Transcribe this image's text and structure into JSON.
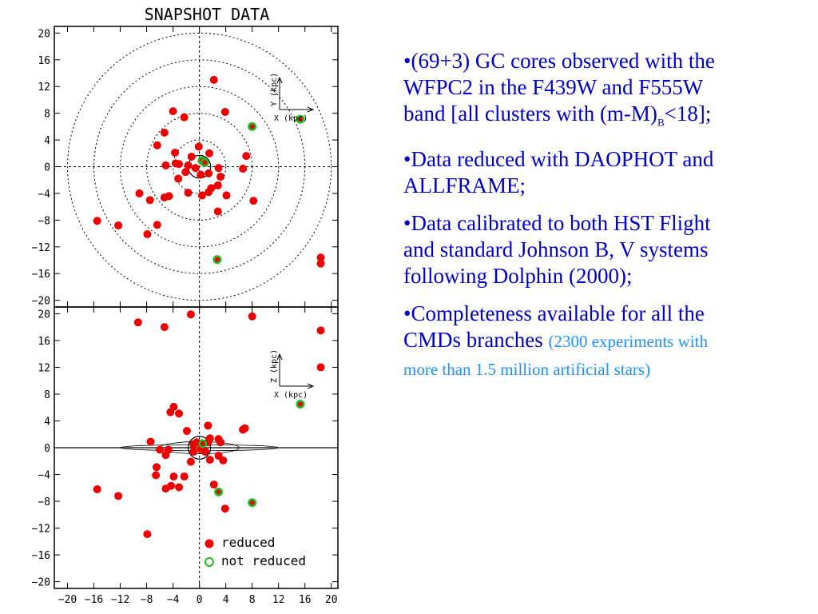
{
  "chart_data": {
    "type": "scatter",
    "title": "SNAPSHOT DATA",
    "ticks": [
      -20,
      -16,
      -12,
      -8,
      -4,
      0,
      4,
      8,
      12,
      16,
      20
    ],
    "xlim": [
      -22,
      21
    ],
    "ylim": [
      -21,
      21
    ],
    "grid": false,
    "legend_position": "bottom-right",
    "colors": {
      "reduced": "#ee0000",
      "not_reduced": "#22bb22"
    },
    "panels": [
      {
        "name": "top",
        "xlabel": "X (kpc)",
        "ylabel": "Y (kpc)",
        "rings": [
          4,
          8,
          12,
          16,
          20
        ],
        "series": [
          {
            "name": "reduced",
            "points": [
              [
                2.2,
                13
              ],
              [
                -4,
                8.3
              ],
              [
                3.9,
                8.2
              ],
              [
                -2.3,
                7.4
              ],
              [
                -5.3,
                5.1
              ],
              [
                -6.4,
                3.2
              ],
              [
                -3.7,
                2.1
              ],
              [
                -0.1,
                3
              ],
              [
                -1.2,
                1.5
              ],
              [
                1.5,
                2
              ],
              [
                7.1,
                1.6
              ],
              [
                -3.6,
                0.5
              ],
              [
                -3.1,
                0.4
              ],
              [
                -1.7,
                0.2
              ],
              [
                -5.1,
                0.2
              ],
              [
                -0.6,
                -0.2
              ],
              [
                2.9,
                -0.2
              ],
              [
                6.6,
                -0.3
              ],
              [
                -2.1,
                -0.8
              ],
              [
                1.4,
                -1
              ],
              [
                3.2,
                -1.5
              ],
              [
                0.2,
                -1.2
              ],
              [
                -3.2,
                -1.8
              ],
              [
                2.8,
                -2.8
              ],
              [
                1.8,
                -3.2
              ],
              [
                -1.7,
                -3.9
              ],
              [
                1.4,
                -3.8
              ],
              [
                -9.1,
                -4
              ],
              [
                -4.6,
                -4.4
              ],
              [
                -5.3,
                -4.6
              ],
              [
                4.1,
                -4.3
              ],
              [
                0.4,
                -4.3
              ],
              [
                -7.5,
                -5
              ],
              [
                8.2,
                -5.1
              ],
              [
                2.8,
                -6.7
              ],
              [
                -15.5,
                -8.1
              ],
              [
                -12.3,
                -8.8
              ],
              [
                -6.4,
                -8.7
              ],
              [
                -7.9,
                -10.1
              ],
              [
                18.4,
                -13.6
              ],
              [
                18.4,
                -14.5
              ]
            ]
          },
          {
            "name": "not reduced",
            "points": [
              [
                0.4,
                0.9
              ],
              [
                0.8,
                0.6
              ],
              [
                8,
                6
              ],
              [
                15.3,
                7.1
              ],
              [
                2.7,
                -13.9
              ]
            ]
          }
        ]
      },
      {
        "name": "bottom",
        "xlabel": "X (kpc)",
        "ylabel": "Z (kpc)",
        "series": [
          {
            "name": "reduced",
            "points": [
              [
                -1.3,
                19.9
              ],
              [
                8,
                19.6
              ],
              [
                -9.3,
                18.7
              ],
              [
                -5.3,
                18
              ],
              [
                18.4,
                17.5
              ],
              [
                18.4,
                12
              ],
              [
                -3.9,
                6.1
              ],
              [
                -4.4,
                5.3
              ],
              [
                -3.1,
                5.1
              ],
              [
                -1.9,
                2.5
              ],
              [
                1.3,
                3.3
              ],
              [
                6.6,
                2.7
              ],
              [
                6.9,
                2.9
              ],
              [
                -7.4,
                0.9
              ],
              [
                -4.7,
                -0.3
              ],
              [
                -6,
                -0.3
              ],
              [
                -0.9,
                0.5
              ],
              [
                -0.4,
                0.8
              ],
              [
                1.3,
                0.8
              ],
              [
                1.6,
                1.4
              ],
              [
                2.9,
                1.3
              ],
              [
                3.2,
                0.8
              ],
              [
                0.2,
                -0.2
              ],
              [
                -0.9,
                -0.6
              ],
              [
                0.9,
                -0.6
              ],
              [
                2.9,
                -1.2
              ],
              [
                -5.1,
                -1.1
              ],
              [
                1.6,
                -1.8
              ],
              [
                -1.3,
                -2.1
              ],
              [
                3.6,
                -1.9
              ],
              [
                -6.5,
                -2.9
              ],
              [
                -6.6,
                -4.1
              ],
              [
                -3.9,
                -4.3
              ],
              [
                -4.3,
                -5.7
              ],
              [
                -2.3,
                -4.3
              ],
              [
                -5.1,
                -6.1
              ],
              [
                -3.1,
                -5.9
              ],
              [
                2.2,
                -5.5
              ],
              [
                -15.5,
                -6.2
              ],
              [
                -12.3,
                -7.2
              ],
              [
                3.9,
                -9.1
              ],
              [
                -7.9,
                -12.9
              ]
            ]
          },
          {
            "name": "not reduced",
            "points": [
              [
                0.5,
                0.6
              ],
              [
                15.3,
                6.5
              ],
              [
                2.9,
                -6.6
              ],
              [
                8,
                -8.2
              ]
            ]
          }
        ]
      }
    ],
    "legend": [
      {
        "label": "reduced",
        "style": "filled"
      },
      {
        "label": "not reduced",
        "style": "open"
      }
    ]
  },
  "text": {
    "b1_main": "•(69+3) GC cores observed with the WFPC2 in the F439W and F555W band [all clusters with (m-M)",
    "b1_sub": "B",
    "b1_end": "<18];",
    "b2": "•Data reduced with DAOPHOT  and ALLFRAME;",
    "b3": "•Data calibrated to both HST Flight and standard Johnson B, V systems following Dolphin (2000);",
    "b4_main": "•Completeness available for all the CMDs branches ",
    "b4_small": "(2300 experiments with more than 1.5 million artificial stars)"
  }
}
